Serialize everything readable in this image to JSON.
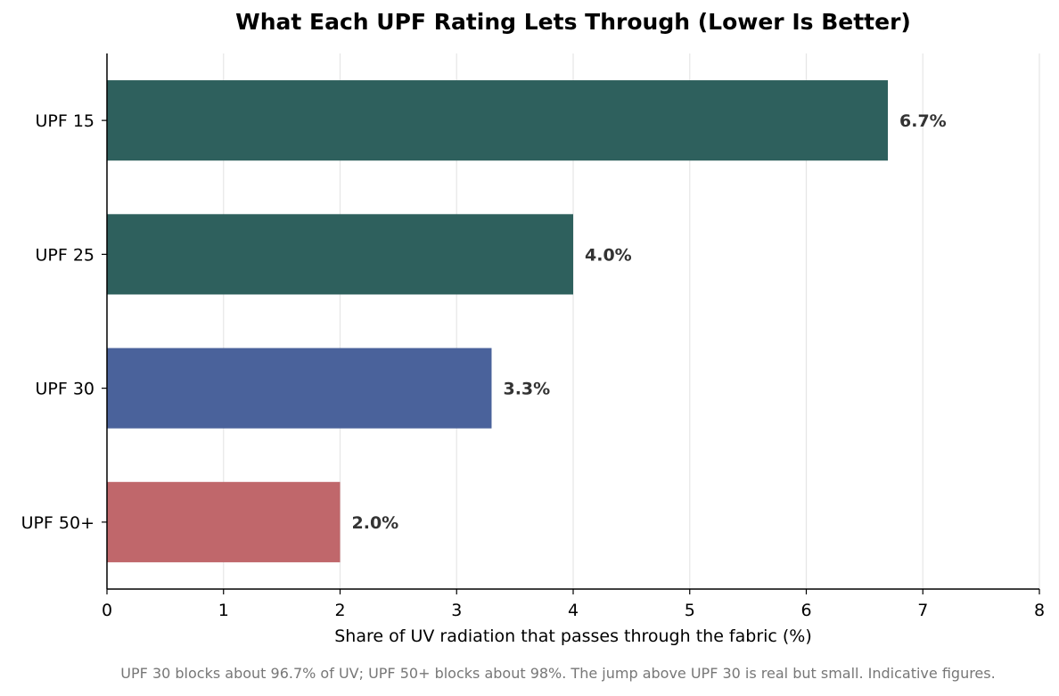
{
  "chart_data": {
    "type": "bar",
    "orientation": "horizontal",
    "title": "What Each UPF Rating Lets Through (Lower Is Better)",
    "xlabel": "Share of UV radiation that passes through the fabric (%)",
    "ylabel": "",
    "categories": [
      "UPF 15",
      "UPF 25",
      "UPF 30",
      "UPF 50+"
    ],
    "values": [
      6.7,
      4.0,
      3.3,
      2.0
    ],
    "data_labels": [
      "6.7%",
      "4.0%",
      "3.3%",
      "2.0%"
    ],
    "bar_colors": [
      "#2e605d",
      "#2e605d",
      "#4a629b",
      "#c0676b"
    ],
    "xlim": [
      0,
      8
    ],
    "xticks": [
      0,
      1,
      2,
      3,
      4,
      5,
      6,
      7,
      8
    ],
    "grid": "vertical",
    "footnote": "UPF 30 blocks about 96.7% of UV; UPF 50+ blocks about 98%. The jump above UPF 30 is real but small. Indicative figures."
  }
}
